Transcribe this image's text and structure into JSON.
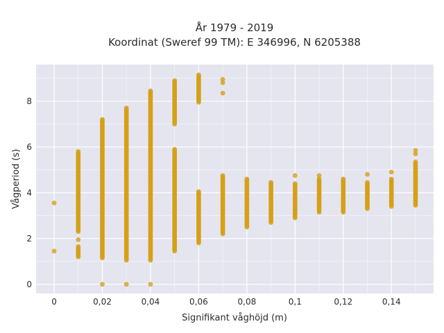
{
  "chart_data": {
    "type": "scatter",
    "title": [
      "År 1979 - 2019",
      "Koordinat (Sweref 99 TM): E 346996, N 6205388"
    ],
    "xlabel": "Signifikant våghöjd (m)",
    "ylabel": "Vågperiod (s)",
    "xlim": [
      -0.0075,
      0.1575
    ],
    "ylim": [
      -0.4,
      9.6
    ],
    "x_ticks": [
      0,
      0.02,
      0.04,
      0.06,
      0.08,
      0.1,
      0.12,
      0.14
    ],
    "x_tick_labels": [
      "0",
      "0,02",
      "0,04",
      "0,06",
      "0,08",
      "0,1",
      "0,12",
      "0,14"
    ],
    "y_ticks": [
      0,
      2,
      4,
      6,
      8
    ],
    "y_tick_labels": [
      "0",
      "2",
      "4",
      "6",
      "8"
    ],
    "grid": true,
    "colors": {
      "marker": "#d4a017",
      "plot_bg": "#e5e5f0",
      "grid": "#ffffff",
      "text": "#2a2a2a"
    },
    "columns": [
      {
        "x": 0,
        "ranges": [],
        "points": [
          1.45,
          3.55
        ]
      },
      {
        "x": 0.01,
        "ranges": [
          [
            1.2,
            1.65
          ],
          [
            2.3,
            5.8
          ]
        ],
        "points": [
          1.95
        ]
      },
      {
        "x": 0.02,
        "ranges": [
          [
            1.15,
            7.2
          ]
        ],
        "points": [
          0
        ]
      },
      {
        "x": 0.03,
        "ranges": [
          [
            1.05,
            7.7
          ]
        ],
        "points": [
          0
        ]
      },
      {
        "x": 0.04,
        "ranges": [
          [
            1.05,
            8.45
          ]
        ],
        "points": [
          0
        ]
      },
      {
        "x": 0.05,
        "ranges": [
          [
            1.45,
            5.9
          ],
          [
            7.0,
            8.9
          ]
        ],
        "points": []
      },
      {
        "x": 0.06,
        "ranges": [
          [
            1.8,
            4.05
          ],
          [
            7.95,
            9.15
          ]
        ],
        "points": []
      },
      {
        "x": 0.07,
        "ranges": [
          [
            2.2,
            4.75
          ]
        ],
        "points": [
          8.35,
          8.8,
          8.95
        ]
      },
      {
        "x": 0.08,
        "ranges": [
          [
            2.5,
            4.6
          ]
        ],
        "points": []
      },
      {
        "x": 0.09,
        "ranges": [
          [
            2.7,
            4.45
          ]
        ],
        "points": []
      },
      {
        "x": 0.1,
        "ranges": [
          [
            2.9,
            4.4
          ]
        ],
        "points": [
          4.75
        ]
      },
      {
        "x": 0.11,
        "ranges": [
          [
            3.15,
            4.6
          ]
        ],
        "points": [
          4.75
        ]
      },
      {
        "x": 0.12,
        "ranges": [
          [
            3.15,
            4.6
          ]
        ],
        "points": []
      },
      {
        "x": 0.13,
        "ranges": [
          [
            3.3,
            4.45
          ]
        ],
        "points": [
          4.8
        ]
      },
      {
        "x": 0.14,
        "ranges": [
          [
            3.4,
            4.6
          ]
        ],
        "points": [
          4.9
        ]
      },
      {
        "x": 0.15,
        "ranges": [
          [
            3.45,
            5.35
          ]
        ],
        "points": [
          5.7,
          5.85
        ]
      }
    ]
  }
}
